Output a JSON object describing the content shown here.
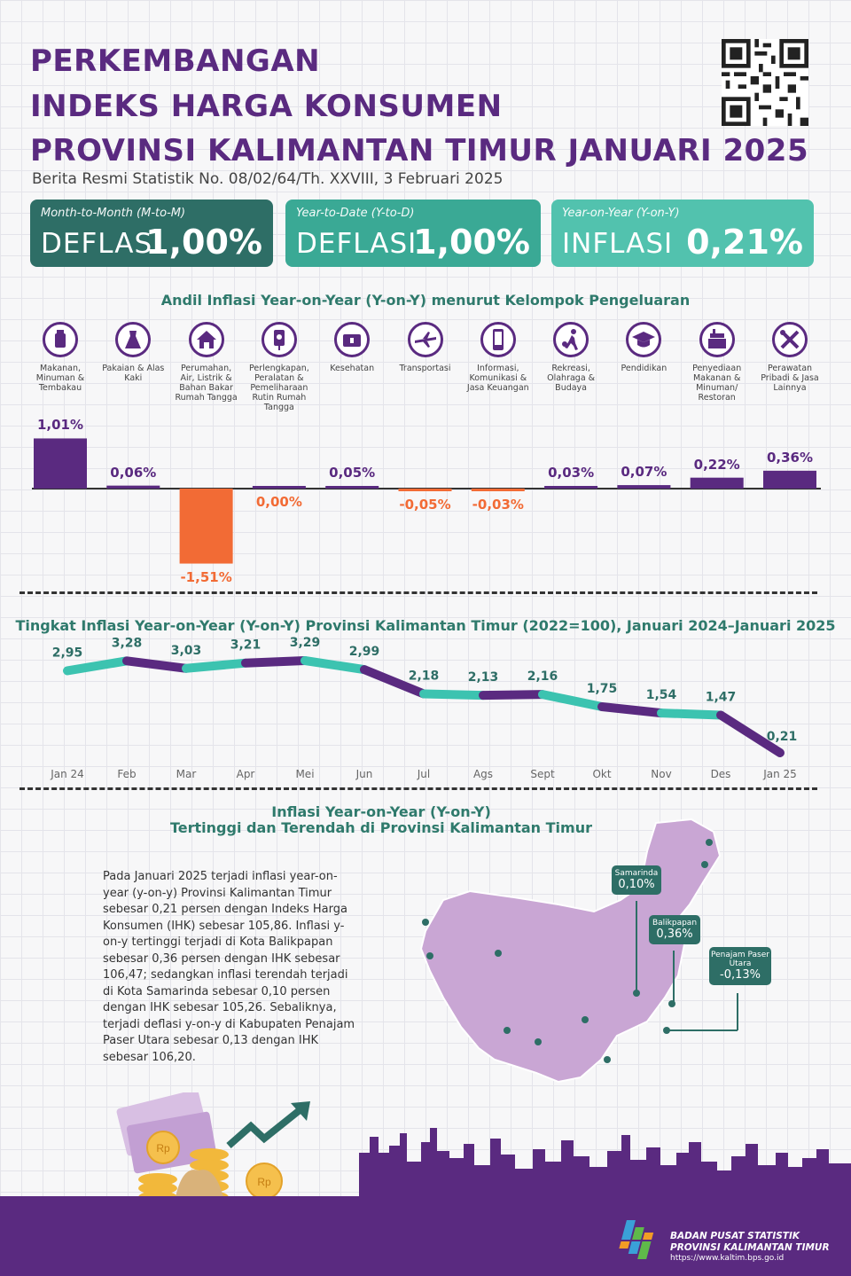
{
  "header": {
    "title_lines": [
      "PERKEMBANGAN",
      "INDEKS HARGA KONSUMEN",
      "PROVINSI KALIMANTAN TIMUR JANUARI 2025"
    ],
    "subtitle": "Berita Resmi Statistik No. 08/02/64/Th. XXVIII, 3 Februari 2025"
  },
  "cards": [
    {
      "label": "Month-to-Month (M-to-M)",
      "kind": "DEFLASI",
      "value": "1,00%",
      "color": "#2e6e66"
    },
    {
      "label": "Year-to-Date (Y-to-D)",
      "kind": "DEFLASI",
      "value": "1,00%",
      "color": "#3aa995"
    },
    {
      "label": "Year-on-Year (Y-on-Y)",
      "kind": "INFLASI",
      "value": "0,21%",
      "color": "#52c2ae"
    }
  ],
  "section1_title": "Andil Inflasi Year-on-Year (Y-on-Y) menurut Kelompok Pengeluaran",
  "section2_title": "Tingkat Inflasi Year-on-Year (Y-on-Y) Provinsi Kalimantan Timur (2022=100), Januari 2024–Januari 2025",
  "section3_title_1": "Inflasi Year-on-Year (Y-on-Y)",
  "section3_title_2": "Tertinggi dan Terendah di Provinsi Kalimantan Timur",
  "chart_data": [
    {
      "type": "bar",
      "categories": [
        "Makanan, Minuman & Tembakau",
        "Pakaian & Alas Kaki",
        "Perumahan, Air, Listrik & Bahan Bakar Rumah Tangga",
        "Perlengkapan, Peralatan & Pemeliharaan Rutin Rumah Tangga",
        "Kesehatan",
        "Transportasi",
        "Informasi, Komunikasi & Jasa Keuangan",
        "Rekreasi, Olahraga & Budaya",
        "Pendidikan",
        "Penyediaan Makanan & Minuman/ Restoran",
        "Perawatan Pribadi & Jasa Lainnya"
      ],
      "values": [
        1.01,
        0.06,
        -1.51,
        0.0,
        0.05,
        -0.05,
        -0.03,
        0.03,
        0.07,
        0.22,
        0.36
      ],
      "value_labels": [
        "1,01%",
        "0,06%",
        "-1,51%",
        "0,00%",
        "0,05%",
        "-0,05%",
        "-0,03%",
        "0,03%",
        "0,07%",
        "0,22%",
        "0,36%"
      ],
      "icons": [
        "food-icon",
        "dress-icon",
        "house-icon",
        "appliance-icon",
        "health-kit-icon",
        "airplane-icon",
        "smartphone-icon",
        "sport-icon",
        "graduation-cap-icon",
        "restaurant-icon",
        "tools-icon"
      ],
      "positive_color": "#5a2a80",
      "negative_color": "#f26b35"
    },
    {
      "type": "line",
      "categories": [
        "Jan 24",
        "Feb",
        "Mar",
        "Apr",
        "Mei",
        "Jun",
        "Jul",
        "Ags",
        "Sept",
        "Okt",
        "Nov",
        "Des",
        "Jan 25"
      ],
      "values": [
        2.95,
        3.28,
        3.03,
        3.21,
        3.29,
        2.99,
        2.18,
        2.13,
        2.16,
        1.75,
        1.54,
        1.47,
        0.21
      ],
      "value_labels": [
        "2,95",
        "3,28",
        "3,03",
        "3,21",
        "3,29",
        "2,99",
        "2,18",
        "2,13",
        "2,16",
        "1,75",
        "1,54",
        "1,47",
        "0,21"
      ],
      "colors": [
        "#3cc3b0",
        "#5a2a80"
      ]
    }
  ],
  "paragraph": "Pada Januari 2025 terjadi inflasi year-on-year (y-on-y) Provinsi Kalimantan Timur sebesar 0,21 persen dengan Indeks Harga Konsumen (IHK) sebesar 105,86. Inflasi y-on-y tertinggi terjadi di Kota Balikpapan sebesar 0,36 persen dengan IHK sebesar 106,47; sedangkan inflasi terendah terjadi di Kota Samarinda sebesar 0,10 persen dengan IHK sebesar 105,26. Sebaliknya, terjadi deflasi y-on-y di Kabupaten Penajam Paser Utara sebesar 0,13 dengan IHK sebesar 106,20.",
  "map_callouts": [
    {
      "name": "Samarinda",
      "value": "0,10%"
    },
    {
      "name": "Balikpapan",
      "value": "0,36%"
    },
    {
      "name": "Penajam Paser Utara",
      "value": "-0,13%"
    }
  ],
  "footer": {
    "org_line1": "BADAN PUSAT STATISTIK",
    "org_line2": "PROVINSI KALIMANTAN TIMUR",
    "url": "https://www.kaltim.bps.go.id"
  }
}
